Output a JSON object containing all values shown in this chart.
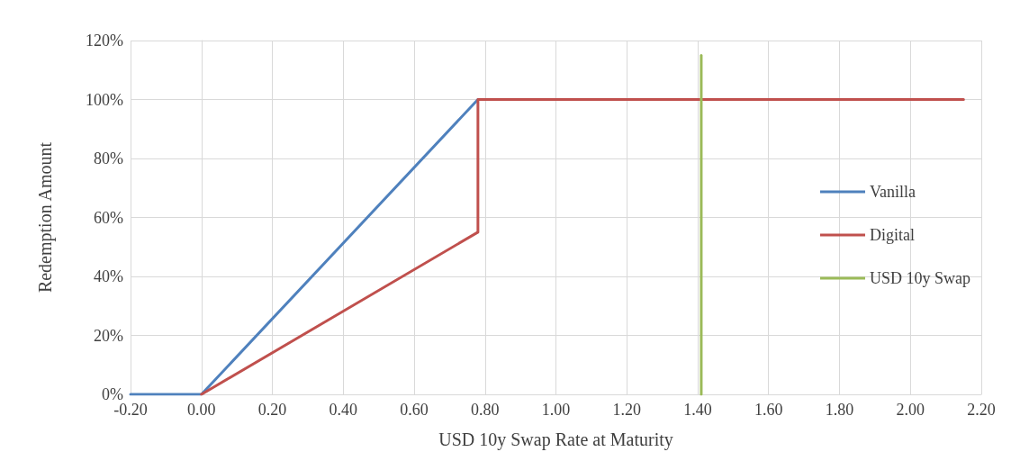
{
  "chart_data": {
    "type": "line",
    "xlabel": "USD 10y Swap Rate at Maturity",
    "ylabel": "Redemption Amount",
    "series": [
      {
        "name": "Vanilla",
        "color": "#4f81bd",
        "x": [
          -0.2,
          0,
          0.78
        ],
        "values": [
          0,
          0,
          100
        ]
      },
      {
        "name": "Digital",
        "color": "#c0504d",
        "x": [
          0,
          0.78,
          0.78,
          2.15
        ],
        "values": [
          0,
          55,
          100,
          100
        ]
      },
      {
        "name": "USD 10y Swap",
        "color": "#9bbb59",
        "x": [
          1.41,
          1.41
        ],
        "values": [
          0,
          115
        ]
      }
    ],
    "xlim": [
      -0.2,
      2.2
    ],
    "xticks": [
      {
        "value": -0.2,
        "label": "-0.20"
      },
      {
        "value": 0,
        "label": "0.00"
      },
      {
        "value": 0.2,
        "label": "0.20"
      },
      {
        "value": 0.4,
        "label": "0.40"
      },
      {
        "value": 0.6,
        "label": "0.60"
      },
      {
        "value": 0.8,
        "label": "0.80"
      },
      {
        "value": 1,
        "label": "1.00"
      },
      {
        "value": 1.2,
        "label": "1.20"
      },
      {
        "value": 1.4,
        "label": "1.40"
      },
      {
        "value": 1.6,
        "label": "1.60"
      },
      {
        "value": 1.8,
        "label": "1.80"
      },
      {
        "value": 2,
        "label": "2.00"
      },
      {
        "value": 2.2,
        "label": "2.20"
      }
    ],
    "ylim": [
      0,
      120
    ],
    "yticks": [
      {
        "value": 0,
        "label": "0%"
      },
      {
        "value": 20,
        "label": "20%"
      },
      {
        "value": 40,
        "label": "40%"
      },
      {
        "value": 60,
        "label": "60%"
      },
      {
        "value": 80,
        "label": "80%"
      },
      {
        "value": 100,
        "label": "100%"
      },
      {
        "value": 120,
        "label": "120%"
      }
    ],
    "grid": true,
    "legend": "right",
    "marker": "none",
    "line_style": "solid"
  }
}
